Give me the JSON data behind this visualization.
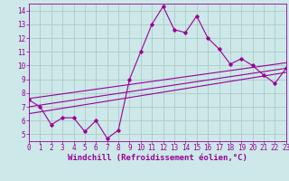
{
  "x_data": [
    0,
    1,
    2,
    3,
    4,
    5,
    6,
    7,
    8,
    9,
    10,
    11,
    12,
    13,
    14,
    15,
    16,
    17,
    18,
    19,
    20,
    21,
    22,
    23
  ],
  "y_data": [
    7.5,
    7.0,
    5.7,
    6.2,
    6.2,
    5.2,
    6.0,
    4.7,
    5.3,
    9.0,
    11.0,
    13.0,
    14.3,
    12.6,
    12.4,
    13.6,
    12.0,
    11.2,
    10.1,
    10.5,
    10.0,
    9.3,
    8.7,
    9.8
  ],
  "trend1_x": [
    0,
    23
  ],
  "trend1_y": [
    7.6,
    10.2
  ],
  "trend2_x": [
    0,
    23
  ],
  "trend2_y": [
    7.0,
    9.8
  ],
  "trend3_x": [
    0,
    23
  ],
  "trend3_y": [
    6.5,
    9.5
  ],
  "line_color": "#990099",
  "bg_color": "#cce8e8",
  "grid_color": "#b0c8c8",
  "xlabel": "Windchill (Refroidissement éolien,°C)",
  "xlim": [
    0,
    23
  ],
  "ylim": [
    4.5,
    14.5
  ],
  "yticks": [
    5,
    6,
    7,
    8,
    9,
    10,
    11,
    12,
    13,
    14
  ],
  "xticks": [
    0,
    1,
    2,
    3,
    4,
    5,
    6,
    7,
    8,
    9,
    10,
    11,
    12,
    13,
    14,
    15,
    16,
    17,
    18,
    19,
    20,
    21,
    22,
    23
  ],
  "tick_fontsize": 5.5,
  "xlabel_fontsize": 6.5
}
